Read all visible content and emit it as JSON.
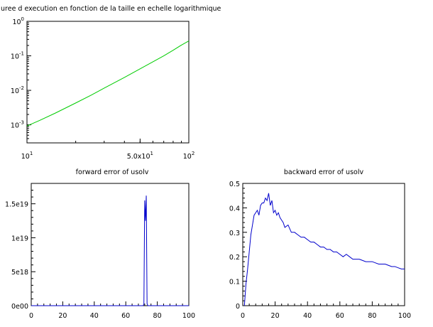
{
  "figure": {
    "background": "#ffffff",
    "axis_color": "#000000"
  },
  "chart_data": [
    {
      "type": "line",
      "title": "uree d execution en fonction de la taille en echelle logarithmique",
      "xscale": "log",
      "yscale": "log",
      "xlim": [
        10,
        100
      ],
      "ylim": [
        0.0003,
        1
      ],
      "grid": false,
      "xticks": [
        {
          "value": 10,
          "base": "10",
          "exp": "1"
        },
        {
          "value": 50,
          "base": "5.0x10",
          "exp": "1"
        },
        {
          "value": 100,
          "base": "10",
          "exp": "2"
        }
      ],
      "yticks": [
        {
          "value": 0.001,
          "base": "10",
          "exp": "-3"
        },
        {
          "value": 0.01,
          "base": "10",
          "exp": "-2"
        },
        {
          "value": 0.1,
          "base": "10",
          "exp": "-1"
        },
        {
          "value": 1,
          "base": "10",
          "exp": "0"
        }
      ],
      "series": [
        {
          "color": "#00cc00",
          "x": [
            10,
            12,
            15,
            20,
            25,
            30,
            40,
            50,
            60,
            70,
            80,
            90,
            100
          ],
          "y": [
            0.00093,
            0.00135,
            0.0022,
            0.0043,
            0.0073,
            0.0116,
            0.0236,
            0.042,
            0.067,
            0.1,
            0.145,
            0.205,
            0.27
          ]
        }
      ]
    },
    {
      "type": "line",
      "title": "forward error of usolv",
      "xlim": [
        0,
        100
      ],
      "ylim": [
        0,
        1.8e+19
      ],
      "grid": false,
      "xticks": [
        {
          "value": 0,
          "label": "0"
        },
        {
          "value": 20,
          "label": "20"
        },
        {
          "value": 40,
          "label": "40"
        },
        {
          "value": 60,
          "label": "60"
        },
        {
          "value": 80,
          "label": "80"
        },
        {
          "value": 100,
          "label": "100"
        }
      ],
      "yticks": [
        {
          "value": 0,
          "label": "0e00"
        },
        {
          "value": 5e+18,
          "label": "5e18"
        },
        {
          "value": 1e+19,
          "label": "1e19"
        },
        {
          "value": 1.5e+19,
          "label": "1.5e19"
        }
      ],
      "series": [
        {
          "color": "#0000cc",
          "x": [
            0,
            70,
            71,
            71.5,
            72,
            72.5,
            73,
            73.5,
            74,
            75,
            100
          ],
          "y": [
            0,
            0,
            0,
            2e+17,
            1.55e+19,
            1.25e+19,
            1.62e+19,
            3e+17,
            0,
            0,
            0
          ]
        }
      ]
    },
    {
      "type": "line",
      "title": "backward error of usolv",
      "xlim": [
        0,
        100
      ],
      "ylim": [
        0,
        0.5
      ],
      "grid": false,
      "xticks": [
        {
          "value": 0,
          "label": "0"
        },
        {
          "value": 20,
          "label": "20"
        },
        {
          "value": 40,
          "label": "40"
        },
        {
          "value": 60,
          "label": "60"
        },
        {
          "value": 80,
          "label": "80"
        },
        {
          "value": 100,
          "label": "100"
        }
      ],
      "yticks": [
        {
          "value": 0,
          "label": "0"
        },
        {
          "value": 0.1,
          "label": "0.1"
        },
        {
          "value": 0.2,
          "label": "0.2"
        },
        {
          "value": 0.3,
          "label": "0.3"
        },
        {
          "value": 0.4,
          "label": "0.4"
        },
        {
          "value": 0.5,
          "label": "0.5"
        }
      ],
      "series": [
        {
          "color": "#0000cc",
          "x": [
            1,
            2,
            3,
            4,
            5,
            6,
            7,
            8,
            9,
            10,
            11,
            12,
            13,
            14,
            15,
            16,
            17,
            18,
            19,
            20,
            21,
            22,
            23,
            24,
            25,
            26,
            28,
            30,
            32,
            34,
            36,
            38,
            40,
            42,
            44,
            46,
            48,
            50,
            52,
            54,
            56,
            58,
            60,
            62,
            64,
            66,
            68,
            70,
            72,
            74,
            76,
            78,
            80,
            82,
            84,
            86,
            88,
            90,
            92,
            94,
            96,
            98,
            100
          ],
          "y": [
            0.0,
            0.09,
            0.15,
            0.22,
            0.29,
            0.33,
            0.37,
            0.38,
            0.39,
            0.37,
            0.41,
            0.42,
            0.42,
            0.44,
            0.43,
            0.46,
            0.41,
            0.43,
            0.38,
            0.39,
            0.37,
            0.38,
            0.36,
            0.35,
            0.34,
            0.32,
            0.33,
            0.3,
            0.3,
            0.29,
            0.28,
            0.28,
            0.27,
            0.26,
            0.26,
            0.25,
            0.24,
            0.24,
            0.23,
            0.23,
            0.22,
            0.22,
            0.21,
            0.2,
            0.21,
            0.2,
            0.19,
            0.19,
            0.19,
            0.185,
            0.18,
            0.18,
            0.18,
            0.175,
            0.17,
            0.17,
            0.17,
            0.165,
            0.16,
            0.16,
            0.155,
            0.15,
            0.15
          ]
        }
      ]
    }
  ]
}
